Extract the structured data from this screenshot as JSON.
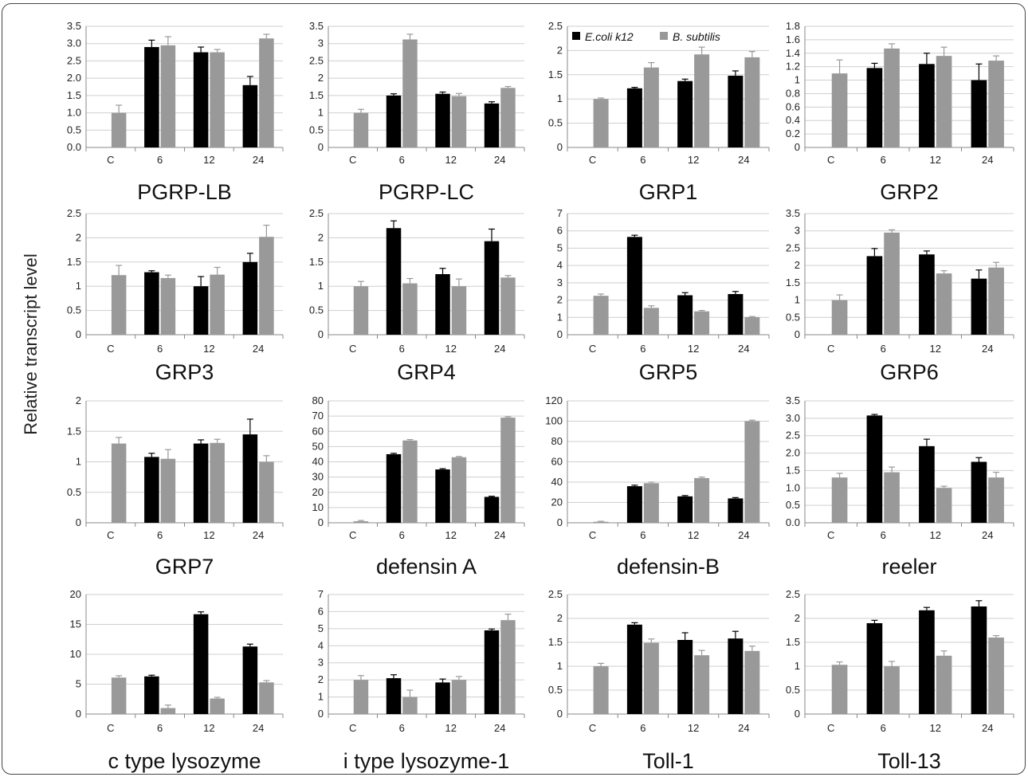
{
  "ylabel": "Relative transcript level",
  "legend": {
    "placement": "top (in GRP1 panel)",
    "items": [
      {
        "name": "E.coli k12",
        "color": "#000000"
      },
      {
        "name": "B. subtilis",
        "color": "#999999"
      }
    ]
  },
  "colors": {
    "ecoli": "#000000",
    "bsub": "#999999",
    "grid": "#cfcfcf",
    "axis": "#888888"
  },
  "chart_data": [
    {
      "type": "bar",
      "title": "PGRP-LB",
      "categories": [
        "C",
        "6",
        "12",
        "24"
      ],
      "ylim": [
        0,
        3.5
      ],
      "ticks": [
        "0.0",
        "0.5",
        "1.0",
        "1.5",
        "2.0",
        "2.5",
        "3.0",
        "3.5"
      ],
      "series": [
        {
          "name": "E.coli k12",
          "values": [
            null,
            2.9,
            2.75,
            1.8
          ],
          "errors": [
            null,
            0.2,
            0.15,
            0.25
          ]
        },
        {
          "name": "B. subtilis",
          "values": [
            1.0,
            2.95,
            2.75,
            3.15
          ],
          "errors": [
            0.22,
            0.25,
            0.08,
            0.12
          ]
        }
      ]
    },
    {
      "type": "bar",
      "title": "PGRP-LC",
      "categories": [
        "C",
        "6",
        "12",
        "24"
      ],
      "ylim": [
        0,
        3.5
      ],
      "ticks": [
        "0",
        "0.5",
        "1",
        "1.5",
        "2",
        "2.5",
        "3",
        "3.5"
      ],
      "series": [
        {
          "name": "E.coli k12",
          "values": [
            null,
            1.5,
            1.55,
            1.27
          ],
          "errors": [
            null,
            0.05,
            0.05,
            0.05
          ]
        },
        {
          "name": "B. subtilis",
          "values": [
            1.0,
            3.12,
            1.48,
            1.72
          ],
          "errors": [
            0.1,
            0.15,
            0.08,
            0.04
          ]
        }
      ]
    },
    {
      "type": "bar",
      "title": "GRP1",
      "categories": [
        "C",
        "6",
        "12",
        "24"
      ],
      "ylim": [
        0,
        2.5
      ],
      "ticks": [
        "0",
        "0.5",
        "1",
        "1.5",
        "2",
        "2.5"
      ],
      "series": [
        {
          "name": "E.coli k12",
          "values": [
            null,
            1.22,
            1.37,
            1.48
          ],
          "errors": [
            null,
            0.02,
            0.04,
            0.1
          ]
        },
        {
          "name": "B. subtilis",
          "values": [
            1.0,
            1.65,
            1.92,
            1.86
          ],
          "errors": [
            0.02,
            0.1,
            0.15,
            0.12
          ]
        }
      ]
    },
    {
      "type": "bar",
      "title": "GRP2",
      "categories": [
        "C",
        "6",
        "12",
        "24"
      ],
      "ylim": [
        0,
        1.8
      ],
      "ticks": [
        "0",
        "0.2",
        "0.4",
        "0.6",
        "0.8",
        "1",
        "1.2",
        "1.4",
        "1.6",
        "1.8"
      ],
      "series": [
        {
          "name": "E.coli k12",
          "values": [
            null,
            1.18,
            1.24,
            1.0
          ],
          "errors": [
            null,
            0.07,
            0.16,
            0.24
          ]
        },
        {
          "name": "B. subtilis",
          "values": [
            1.1,
            1.47,
            1.36,
            1.29
          ],
          "errors": [
            0.2,
            0.07,
            0.13,
            0.07
          ]
        }
      ]
    },
    {
      "type": "bar",
      "title": "GRP3",
      "categories": [
        "C",
        "6",
        "12",
        "24"
      ],
      "ylim": [
        0,
        2.5
      ],
      "ticks": [
        "0",
        "0.5",
        "1",
        "1.5",
        "2",
        "2.5"
      ],
      "series": [
        {
          "name": "E.coli k12",
          "values": [
            null,
            1.29,
            1.0,
            1.5
          ],
          "errors": [
            null,
            0.03,
            0.2,
            0.18
          ]
        },
        {
          "name": "B. subtilis",
          "values": [
            1.23,
            1.17,
            1.24,
            2.02
          ],
          "errors": [
            0.2,
            0.06,
            0.15,
            0.24
          ]
        }
      ]
    },
    {
      "type": "bar",
      "title": "GRP4",
      "categories": [
        "C",
        "6",
        "12",
        "24"
      ],
      "ylim": [
        0,
        2.5
      ],
      "ticks": [
        "0",
        "0.5",
        "1",
        "1.5",
        "2",
        "2.5"
      ],
      "series": [
        {
          "name": "E.coli k12",
          "values": [
            null,
            2.2,
            1.25,
            1.93
          ],
          "errors": [
            null,
            0.15,
            0.12,
            0.25
          ]
        },
        {
          "name": "B. subtilis",
          "values": [
            1.0,
            1.06,
            1.0,
            1.18
          ],
          "errors": [
            0.1,
            0.1,
            0.15,
            0.04
          ]
        }
      ]
    },
    {
      "type": "bar",
      "title": "GRP5",
      "categories": [
        "C",
        "6",
        "12",
        "24"
      ],
      "ylim": [
        0,
        7
      ],
      "ticks": [
        "0",
        "1",
        "2",
        "3",
        "4",
        "5",
        "6",
        "7"
      ],
      "series": [
        {
          "name": "E.coli k12",
          "values": [
            null,
            5.65,
            2.28,
            2.35
          ],
          "errors": [
            null,
            0.1,
            0.15,
            0.15
          ]
        },
        {
          "name": "B. subtilis",
          "values": [
            2.25,
            1.55,
            1.35,
            1.02
          ],
          "errors": [
            0.1,
            0.12,
            0.05,
            0.03
          ]
        }
      ]
    },
    {
      "type": "bar",
      "title": "GRP6",
      "categories": [
        "C",
        "6",
        "12",
        "24"
      ],
      "ylim": [
        0,
        3.5
      ],
      "ticks": [
        "0",
        "0.5",
        "1",
        "1.5",
        "2",
        "2.5",
        "3",
        "3.5"
      ],
      "series": [
        {
          "name": "E.coli k12",
          "values": [
            null,
            2.27,
            2.32,
            1.62
          ],
          "errors": [
            null,
            0.22,
            0.1,
            0.25
          ]
        },
        {
          "name": "B. subtilis",
          "values": [
            1.0,
            2.95,
            1.77,
            1.94
          ],
          "errors": [
            0.15,
            0.08,
            0.08,
            0.15
          ]
        }
      ]
    },
    {
      "type": "bar",
      "title": "GRP7",
      "categories": [
        "C",
        "6",
        "12",
        "24"
      ],
      "ylim": [
        0,
        2
      ],
      "ticks": [
        "0",
        "0.5",
        "1",
        "1.5",
        "2"
      ],
      "series": [
        {
          "name": "E.coli k12",
          "values": [
            null,
            1.08,
            1.3,
            1.45
          ],
          "errors": [
            null,
            0.06,
            0.06,
            0.25
          ]
        },
        {
          "name": "B. subtilis",
          "values": [
            1.3,
            1.05,
            1.31,
            1.0
          ],
          "errors": [
            0.1,
            0.15,
            0.06,
            0.1
          ]
        }
      ]
    },
    {
      "type": "bar",
      "title": "defensin A",
      "categories": [
        "C",
        "6",
        "12",
        "24"
      ],
      "ylim": [
        0,
        80
      ],
      "ticks": [
        "0",
        "10",
        "20",
        "30",
        "40",
        "50",
        "60",
        "70",
        "80"
      ],
      "series": [
        {
          "name": "E.coli k12",
          "values": [
            null,
            45,
            35,
            17
          ],
          "errors": [
            null,
            0.6,
            0.5,
            0.4
          ]
        },
        {
          "name": "B. subtilis",
          "values": [
            1,
            54,
            43,
            69
          ],
          "errors": [
            0.5,
            0.6,
            0.5,
            0.6
          ]
        }
      ]
    },
    {
      "type": "bar",
      "title": "defensin-B",
      "categories": [
        "C",
        "6",
        "12",
        "24"
      ],
      "ylim": [
        0,
        120
      ],
      "ticks": [
        "0",
        "20",
        "40",
        "60",
        "80",
        "100",
        "120"
      ],
      "series": [
        {
          "name": "E.coli k12",
          "values": [
            null,
            36,
            26,
            24
          ],
          "errors": [
            null,
            1,
            0.8,
            0.8
          ]
        },
        {
          "name": "B. subtilis",
          "values": [
            1,
            39,
            44,
            100
          ],
          "errors": [
            0.5,
            1,
            1,
            1
          ]
        }
      ]
    },
    {
      "type": "bar",
      "title": "reeler",
      "categories": [
        "C",
        "6",
        "12",
        "24"
      ],
      "ylim": [
        0,
        3.5
      ],
      "ticks": [
        "0.0",
        "0.5",
        "1.0",
        "1.5",
        "2.0",
        "2.5",
        "3.0",
        "3.5"
      ],
      "series": [
        {
          "name": "E.coli k12",
          "values": [
            null,
            3.08,
            2.2,
            1.75
          ],
          "errors": [
            null,
            0.03,
            0.2,
            0.12
          ]
        },
        {
          "name": "B. subtilis",
          "values": [
            1.3,
            1.45,
            1.0,
            1.3
          ],
          "errors": [
            0.12,
            0.15,
            0.05,
            0.15
          ]
        }
      ]
    },
    {
      "type": "bar",
      "title": "c type lysozyme",
      "categories": [
        "C",
        "6",
        "12",
        "24"
      ],
      "ylim": [
        0,
        20
      ],
      "ticks": [
        "0",
        "5",
        "10",
        "15",
        "20"
      ],
      "series": [
        {
          "name": "E.coli k12",
          "values": [
            null,
            6.3,
            16.7,
            11.3
          ],
          "errors": [
            null,
            0.2,
            0.4,
            0.4
          ]
        },
        {
          "name": "B. subtilis",
          "values": [
            6.1,
            1.0,
            2.6,
            5.3
          ],
          "errors": [
            0.3,
            0.5,
            0.2,
            0.3
          ]
        }
      ]
    },
    {
      "type": "bar",
      "title": "i type lysozyme-1",
      "categories": [
        "C",
        "6",
        "12",
        "24"
      ],
      "ylim": [
        0,
        7
      ],
      "ticks": [
        "0",
        "1",
        "2",
        "3",
        "4",
        "5",
        "6",
        "7"
      ],
      "series": [
        {
          "name": "E.coli k12",
          "values": [
            null,
            2.1,
            1.85,
            4.9
          ],
          "errors": [
            null,
            0.2,
            0.2,
            0.08
          ]
        },
        {
          "name": "B. subtilis",
          "values": [
            2.0,
            1.0,
            2.0,
            5.5
          ],
          "errors": [
            0.25,
            0.4,
            0.2,
            0.35
          ]
        }
      ]
    },
    {
      "type": "bar",
      "title": "Toll-1",
      "categories": [
        "C",
        "6",
        "12",
        "24"
      ],
      "ylim": [
        0,
        2.5
      ],
      "ticks": [
        "0",
        "0.5",
        "1",
        "1.5",
        "2",
        "2.5"
      ],
      "series": [
        {
          "name": "E.coli k12",
          "values": [
            null,
            1.87,
            1.55,
            1.58
          ],
          "errors": [
            null,
            0.04,
            0.15,
            0.15
          ]
        },
        {
          "name": "B. subtilis",
          "values": [
            1.0,
            1.49,
            1.23,
            1.32
          ],
          "errors": [
            0.06,
            0.08,
            0.1,
            0.1
          ]
        }
      ]
    },
    {
      "type": "bar",
      "title": "Toll-13",
      "categories": [
        "C",
        "6",
        "12",
        "24"
      ],
      "ylim": [
        0,
        2.5
      ],
      "ticks": [
        "0",
        "0.5",
        "1",
        "1.5",
        "2",
        "2.5"
      ],
      "series": [
        {
          "name": "E.coli k12",
          "values": [
            null,
            1.9,
            2.17,
            2.25
          ],
          "errors": [
            null,
            0.06,
            0.06,
            0.12
          ]
        },
        {
          "name": "B. subtilis",
          "values": [
            1.03,
            1.0,
            1.22,
            1.6
          ],
          "errors": [
            0.06,
            0.1,
            0.1,
            0.04
          ]
        }
      ]
    }
  ]
}
